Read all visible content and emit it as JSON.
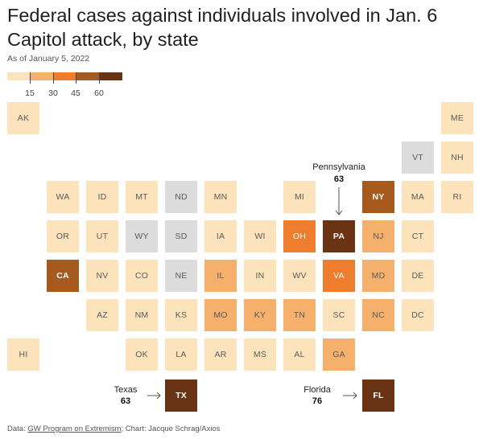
{
  "title": "Federal cases against individuals involved in Jan. 6 Capitol attack, by state",
  "subtitle": "As of January 5, 2022",
  "colors": {
    "no_data": "#dcdcdc",
    "scale": [
      "#fde3bb",
      "#f5b06b",
      "#ee7e2e",
      "#a75a1d",
      "#6a3414"
    ],
    "text_dark": "#5a5a5a",
    "text_light": "#ffffff"
  },
  "legend": {
    "ticks": [
      "15",
      "30",
      "45",
      "60"
    ]
  },
  "chart_data": {
    "type": "map",
    "metric": "Federal cases",
    "bins": [
      {
        "range": "0-15",
        "color": "#fde3bb"
      },
      {
        "range": "15-30",
        "color": "#f5b06b"
      },
      {
        "range": "30-45",
        "color": "#ee7e2e"
      },
      {
        "range": "45-60",
        "color": "#a75a1d"
      },
      {
        "range": "60+",
        "color": "#6a3414"
      }
    ],
    "states": [
      {
        "abbr": "AK",
        "bin": 0
      },
      {
        "abbr": "ME",
        "bin": 0
      },
      {
        "abbr": "VT",
        "bin": -1
      },
      {
        "abbr": "NH",
        "bin": 0
      },
      {
        "abbr": "WA",
        "bin": 0
      },
      {
        "abbr": "ID",
        "bin": 0
      },
      {
        "abbr": "MT",
        "bin": 0
      },
      {
        "abbr": "ND",
        "bin": -1
      },
      {
        "abbr": "MN",
        "bin": 0
      },
      {
        "abbr": "MI",
        "bin": 0
      },
      {
        "abbr": "NY",
        "bin": 3
      },
      {
        "abbr": "MA",
        "bin": 0
      },
      {
        "abbr": "RI",
        "bin": 0
      },
      {
        "abbr": "OR",
        "bin": 0
      },
      {
        "abbr": "UT",
        "bin": 0
      },
      {
        "abbr": "WY",
        "bin": -1
      },
      {
        "abbr": "SD",
        "bin": -1
      },
      {
        "abbr": "IA",
        "bin": 0
      },
      {
        "abbr": "WI",
        "bin": 0
      },
      {
        "abbr": "OH",
        "bin": 2
      },
      {
        "abbr": "PA",
        "bin": 4,
        "value": 63
      },
      {
        "abbr": "NJ",
        "bin": 1
      },
      {
        "abbr": "CT",
        "bin": 0
      },
      {
        "abbr": "CA",
        "bin": 3
      },
      {
        "abbr": "NV",
        "bin": 0
      },
      {
        "abbr": "CO",
        "bin": 0
      },
      {
        "abbr": "NE",
        "bin": -1
      },
      {
        "abbr": "IL",
        "bin": 1
      },
      {
        "abbr": "IN",
        "bin": 0
      },
      {
        "abbr": "WV",
        "bin": 0
      },
      {
        "abbr": "VA",
        "bin": 2
      },
      {
        "abbr": "MD",
        "bin": 1
      },
      {
        "abbr": "DE",
        "bin": 0
      },
      {
        "abbr": "AZ",
        "bin": 0
      },
      {
        "abbr": "NM",
        "bin": 0
      },
      {
        "abbr": "KS",
        "bin": 0
      },
      {
        "abbr": "MO",
        "bin": 1
      },
      {
        "abbr": "KY",
        "bin": 1
      },
      {
        "abbr": "TN",
        "bin": 1
      },
      {
        "abbr": "SC",
        "bin": 0
      },
      {
        "abbr": "NC",
        "bin": 1
      },
      {
        "abbr": "DC",
        "bin": 0
      },
      {
        "abbr": "HI",
        "bin": 0
      },
      {
        "abbr": "OK",
        "bin": 0
      },
      {
        "abbr": "LA",
        "bin": 0
      },
      {
        "abbr": "AR",
        "bin": 0
      },
      {
        "abbr": "MS",
        "bin": 0
      },
      {
        "abbr": "AL",
        "bin": 0
      },
      {
        "abbr": "GA",
        "bin": 1
      },
      {
        "abbr": "TX",
        "bin": 4,
        "value": 63
      },
      {
        "abbr": "FL",
        "bin": 4,
        "value": 76
      }
    ],
    "callouts": [
      {
        "state": "Pennsylvania",
        "abbr": "PA",
        "value": "63"
      },
      {
        "state": "Texas",
        "abbr": "TX",
        "value": "63"
      },
      {
        "state": "Florida",
        "abbr": "FL",
        "value": "76"
      }
    ]
  },
  "footer": {
    "prefix": "Data: ",
    "source_link": "GW Program on Extremism",
    "suffix": "; Chart: Jacque Schrag/Axios"
  }
}
